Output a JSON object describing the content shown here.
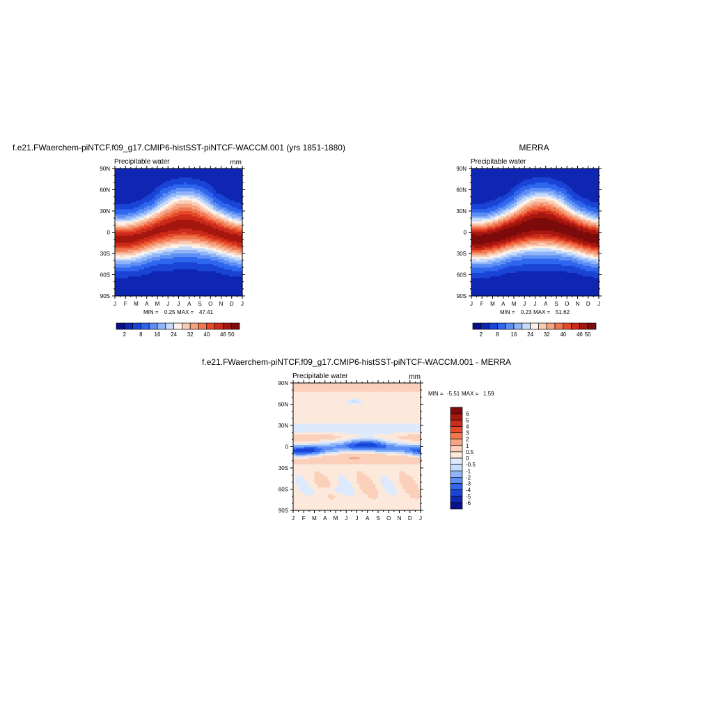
{
  "chart_data": [
    {
      "type": "heatmap",
      "title": "f.e21.FWaerchem-piNTCF.f09_g17.CMIP6-histSST-piNTCF-WACCM.001 (yrs 1851-1880)",
      "subtitle": "Precipitable water",
      "units": "mm",
      "x_ticks": [
        "J",
        "F",
        "M",
        "A",
        "M",
        "J",
        "J",
        "A",
        "S",
        "O",
        "N",
        "D",
        "J"
      ],
      "y_ticks": [
        "90N",
        "60N",
        "30N",
        "0",
        "30S",
        "60S",
        "90S"
      ],
      "ylim": [
        -90,
        90
      ],
      "stats": {
        "min_label": "MIN =",
        "min": "0.25",
        "max_label": "MAX =",
        "max": "47.41"
      },
      "colorbar": {
        "orientation": "horizontal",
        "labels": [
          "2",
          "8",
          "16",
          "24",
          "32",
          "40",
          "46",
          "50"
        ]
      },
      "field": {
        "equator_peak": 44,
        "pole_value": 3,
        "itcz_shift": 10
      }
    },
    {
      "type": "heatmap",
      "title": "MERRA",
      "subtitle": "Precipitable water",
      "units": "",
      "x_ticks": [
        "J",
        "F",
        "M",
        "A",
        "M",
        "J",
        "J",
        "A",
        "S",
        "O",
        "N",
        "D",
        "J"
      ],
      "y_ticks": [
        "90N",
        "60N",
        "30N",
        "0",
        "30S",
        "60S",
        "90S"
      ],
      "ylim": [
        -90,
        90
      ],
      "stats": {
        "min_label": "MIN =",
        "min": "0.23",
        "max_label": "MAX =",
        "max": "51.62"
      },
      "colorbar": {
        "orientation": "horizontal",
        "labels": [
          "2",
          "8",
          "16",
          "24",
          "32",
          "40",
          "46",
          "50"
        ]
      },
      "field": {
        "equator_peak": 49,
        "pole_value": 3,
        "itcz_shift": 10
      }
    },
    {
      "type": "heatmap",
      "title": "f.e21.FWaerchem-piNTCF.f09_g17.CMIP6-histSST-piNTCF-WACCM.001 - MERRA",
      "subtitle": "Precipitable water",
      "units": "mm",
      "x_ticks": [
        "J",
        "F",
        "M",
        "A",
        "M",
        "J",
        "J",
        "A",
        "S",
        "O",
        "N",
        "D",
        "J"
      ],
      "y_ticks": [
        "90N",
        "60N",
        "30N",
        "0",
        "30S",
        "60S",
        "90S"
      ],
      "ylim": [
        -90,
        90
      ],
      "stats": {
        "min_label": "MIN =",
        "min": "-5.51",
        "max_label": "MAX =",
        "max": "1.59"
      },
      "colorbar": {
        "orientation": "vertical",
        "labels": [
          "6",
          "5",
          "4",
          "3",
          "2",
          "1",
          "0.5",
          "0",
          "-0.5",
          "-1",
          "-2",
          "-3",
          "-4",
          "-5",
          "-6"
        ]
      }
    }
  ],
  "colors": {
    "abs_palette": [
      "#0a0f8c",
      "#0f26b3",
      "#1a44d6",
      "#2f66ee",
      "#5c8ef4",
      "#8fb4f8",
      "#c6dbfb",
      "#fdf2e9",
      "#f9cdb3",
      "#f6a383",
      "#f0784f",
      "#e64a2b",
      "#cc2a1a",
      "#a5160f",
      "#7d0b0b"
    ],
    "diff_palette": [
      "#0a0f8c",
      "#0f26b3",
      "#1a44d6",
      "#2f66ee",
      "#5c8ef4",
      "#8fb4f8",
      "#c6dbfb",
      "#dde9fc",
      "#fde9dc",
      "#fbd0bb",
      "#f6a383",
      "#f0784f",
      "#e64a2b",
      "#cc2a1a",
      "#a5160f",
      "#7d0b0b"
    ]
  }
}
